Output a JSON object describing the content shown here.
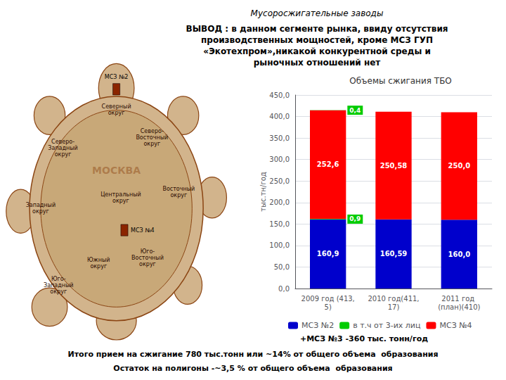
{
  "chart_data": {
    "type": "bar",
    "suptitle": "Мусоросжигательные заводы",
    "subtitle": [
      "ВЫВОД : в данном сегменте рынка, ввиду отсутствия",
      "производственных мощностей, кроме МСЗ ГУП",
      "«Экотехпром»,никакой конкурентной среды и",
      "рыночных отношений нет"
    ],
    "title": "Объемы сжигания ТБО",
    "ylabel": "тыс.тн/год",
    "categories": [
      "2009 год (413,5)",
      "2010 год(411,17)",
      "2011 год (план)(410)"
    ],
    "series": [
      {
        "name": "МСЗ №2",
        "color": "#0000CC",
        "values": [
          160.9,
          160.59,
          160.0
        ],
        "value_labels": [
          "160,9",
          "160,59",
          "160,0"
        ]
      },
      {
        "name": "в т.ч от 3-их лиц",
        "color": "#00CC00",
        "values": [
          0.9,
          null,
          null
        ],
        "value_labels": [
          "0,9",
          null,
          null
        ]
      },
      {
        "name": "МСЗ №4",
        "color": "#FF0000",
        "values": [
          252.6,
          250.58,
          250.0
        ],
        "value_labels": [
          "252,6",
          "250,58",
          "250,0"
        ]
      },
      {
        "name": "в т.ч от 3-их лиц",
        "color": "#00CC00",
        "values": [
          0.4,
          null,
          null
        ],
        "value_labels": [
          "0,4",
          null,
          null
        ]
      }
    ],
    "stacked": true,
    "data_labels": true,
    "ylim": [
      0,
      450
    ],
    "yticks": [
      {
        "value": 0,
        "label": "0,0"
      },
      {
        "value": 50,
        "label": "50,0"
      },
      {
        "value": 100,
        "label": "100,0"
      },
      {
        "value": 150,
        "label": "150,0"
      },
      {
        "value": 200,
        "label": "200,0"
      },
      {
        "value": 250,
        "label": "250,0"
      },
      {
        "value": 300,
        "label": "300,0"
      },
      {
        "value": 350,
        "label": "350,0"
      },
      {
        "value": 400,
        "label": "400,0"
      },
      {
        "value": 450,
        "label": "450,0"
      }
    ],
    "grid": true,
    "legend": "bottom",
    "annotations": [
      "+МСЗ №3 -360 тыс. тонн/год",
      "Итого прием на сжигание 780 тыс.тонн или ~14% от общего объема  образования",
      "Остаток на полигоны -~3,5 % от общего объема  образования"
    ],
    "map_labels": [
      "МОСКВА",
      "Северный\nокруг",
      "Северо-\nВосточный\nокруг",
      "Восточный\nокруг",
      "Центральный\nокруг",
      "Северо-\nЗападный\nокруг",
      "Западный\nокруг",
      "Южный\nокруг",
      "Юго-\nВосточный\nокруг",
      "Юго-\nЗападный\nокруг",
      "МСЗ №2",
      "МСЗ №4"
    ]
  }
}
